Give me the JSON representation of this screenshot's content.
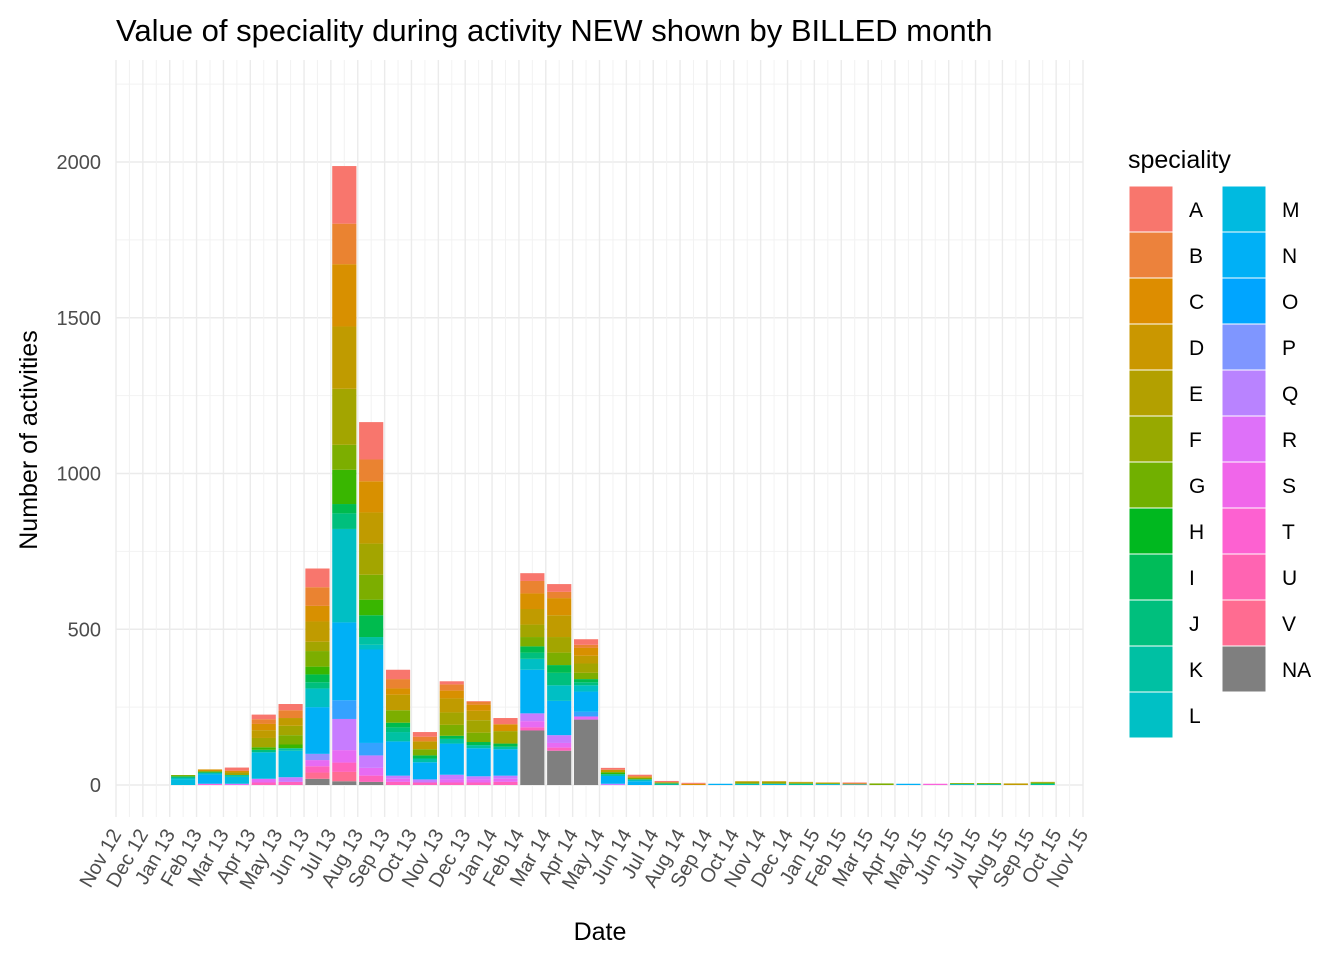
{
  "chart_data": {
    "type": "bar",
    "stacked": true,
    "title": "Value of  speciality during activity NEW shown by BILLED month",
    "xlabel": "Date",
    "ylabel": "Number of activities",
    "ylim": [
      -100,
      2240
    ],
    "y_ticks": [
      0,
      500,
      1000,
      1500,
      2000
    ],
    "x_tick_labels": [
      "Nov 12",
      "Dec 12",
      "Jan 13",
      "Feb 13",
      "Mar 13",
      "Apr 13",
      "May 13",
      "Jun 13",
      "Jul 13",
      "Aug 13",
      "Sep 13",
      "Oct 13",
      "Nov 13",
      "Dec 13",
      "Jan 14",
      "Feb 14",
      "Mar 14",
      "Apr 14",
      "May 14",
      "Jun 14",
      "Jul 14",
      "Aug 14",
      "Sep 14",
      "Oct 14",
      "Nov 14",
      "Dec 14",
      "Jan 15",
      "Feb 15",
      "Mar 15",
      "Apr 15",
      "May 15",
      "Jun 15",
      "Jul 15",
      "Aug 15",
      "Sep 15",
      "Oct 15",
      "Nov 15"
    ],
    "grid": true,
    "legend_position": "right",
    "legend_title": "speciality",
    "categories_keys": [
      "A",
      "B",
      "C",
      "D",
      "E",
      "F",
      "G",
      "H",
      "I",
      "J",
      "K",
      "L",
      "M",
      "N",
      "O",
      "P",
      "Q",
      "R",
      "S",
      "T",
      "U",
      "V",
      "NA"
    ],
    "colors": {
      "A": "#F8766D",
      "B": "#EA8331",
      "C": "#D89000",
      "D": "#C09B00",
      "E": "#A3A500",
      "F": "#7CAE00",
      "G": "#39B600",
      "H": "#00BB4E",
      "I": "#00BF7D",
      "J": "#00C1A3",
      "K": "#00BFC4",
      "L": "#00BAE0",
      "M": "#00B0F6",
      "N": "#35A2FF",
      "O": "#9590FF",
      "P": "#C77CFF",
      "Q": "#E76BF3",
      "R": "#FA62DB",
      "S": "#FF62BC",
      "T": "#FF6C91",
      "U": "#FF6C91",
      "V": "#FF6C91",
      "NA": "#7F7F7F"
    },
    "legend_colors": {
      "A": "#F8766D",
      "B": "#EC823C",
      "C": "#DD8D00",
      "D": "#CA9700",
      "E": "#B3A000",
      "F": "#97A900",
      "G": "#71B000",
      "H": "#00B81F",
      "I": "#00BC59",
      "J": "#00BF7D",
      "K": "#00C0A3",
      "L": "#00C0C5",
      "M": "#00BAE0",
      "N": "#00B0F6",
      "O": "#00A5FF",
      "P": "#7F96FF",
      "Q": "#B983FF",
      "R": "#DE71F9",
      "S": "#F066EA",
      "T": "#FD61D1",
      "U": "#FF64B2",
      "V": "#FF6C91",
      "NA": "#7F7F7F"
    },
    "bars": [
      {
        "date": "Jan 13",
        "segments": [
          [
            "L",
            18
          ],
          [
            "K",
            6
          ],
          [
            "H",
            4
          ],
          [
            "F",
            4
          ]
        ]
      },
      {
        "date": "Feb 13",
        "segments": [
          [
            "R",
            4
          ],
          [
            "M",
            30
          ],
          [
            "K",
            6
          ],
          [
            "G",
            4
          ],
          [
            "C",
            6
          ]
        ]
      },
      {
        "date": "Mar 13",
        "segments": [
          [
            "Q",
            4
          ],
          [
            "L",
            22
          ],
          [
            "J",
            6
          ],
          [
            "E",
            8
          ],
          [
            "C",
            6
          ],
          [
            "A",
            10
          ]
        ]
      },
      {
        "date": "Apr 13",
        "segments": [
          [
            "S",
            8
          ],
          [
            "Q",
            12
          ],
          [
            "L",
            85
          ],
          [
            "I",
            8
          ],
          [
            "G",
            8
          ],
          [
            "E",
            30
          ],
          [
            "D",
            25
          ],
          [
            "C",
            20
          ],
          [
            "B",
            15
          ],
          [
            "A",
            15
          ]
        ]
      },
      {
        "date": "May 13",
        "segments": [
          [
            "S",
            10
          ],
          [
            "P",
            15
          ],
          [
            "L",
            85
          ],
          [
            "J",
            8
          ],
          [
            "G",
            12
          ],
          [
            "F",
            30
          ],
          [
            "E",
            30
          ],
          [
            "D",
            25
          ],
          [
            "B",
            25
          ],
          [
            "A",
            20
          ]
        ]
      },
      {
        "date": "Jun 13",
        "segments": [
          [
            "NA",
            20
          ],
          [
            "T",
            20
          ],
          [
            "S",
            20
          ],
          [
            "Q",
            20
          ],
          [
            "O",
            20
          ],
          [
            "M",
            150
          ],
          [
            "K",
            60
          ],
          [
            "I",
            20
          ],
          [
            "H",
            25
          ],
          [
            "G",
            25
          ],
          [
            "F",
            50
          ],
          [
            "E",
            30
          ],
          [
            "D",
            65
          ],
          [
            "C",
            50
          ],
          [
            "B",
            60
          ],
          [
            "A",
            60
          ]
        ]
      },
      {
        "date": "Jul 13",
        "segments": [
          [
            "NA",
            12
          ],
          [
            "T",
            30
          ],
          [
            "S",
            30
          ],
          [
            "Q",
            40
          ],
          [
            "P",
            100
          ],
          [
            "N",
            60
          ],
          [
            "M",
            250
          ],
          [
            "K",
            300
          ],
          [
            "I",
            50
          ],
          [
            "H",
            30
          ],
          [
            "G",
            110
          ],
          [
            "F",
            80
          ],
          [
            "E",
            180
          ],
          [
            "D",
            200
          ],
          [
            "C",
            200
          ],
          [
            "B",
            130
          ],
          [
            "A",
            185
          ]
        ]
      },
      {
        "date": "Aug 13",
        "segments": [
          [
            "NA",
            10
          ],
          [
            "S",
            20
          ],
          [
            "Q",
            25
          ],
          [
            "P",
            40
          ],
          [
            "N",
            40
          ],
          [
            "M",
            300
          ],
          [
            "K",
            15
          ],
          [
            "J",
            25
          ],
          [
            "H",
            70
          ],
          [
            "G",
            50
          ],
          [
            "F",
            80
          ],
          [
            "E",
            100
          ],
          [
            "D",
            100
          ],
          [
            "C",
            100
          ],
          [
            "B",
            70
          ],
          [
            "A",
            120
          ],
          [
            "V",
            -5
          ]
        ]
      },
      {
        "date": "Sep 13",
        "segments": [
          [
            "S",
            10
          ],
          [
            "Q",
            10
          ],
          [
            "P",
            10
          ],
          [
            "M",
            110
          ],
          [
            "J",
            30
          ],
          [
            "I",
            15
          ],
          [
            "H",
            15
          ],
          [
            "F",
            40
          ],
          [
            "D",
            50
          ],
          [
            "C",
            20
          ],
          [
            "B",
            30
          ],
          [
            "A",
            30
          ]
        ]
      },
      {
        "date": "Oct 13",
        "segments": [
          [
            "S",
            8
          ],
          [
            "P",
            10
          ],
          [
            "M",
            55
          ],
          [
            "J",
            12
          ],
          [
            "H",
            10
          ],
          [
            "F",
            20
          ],
          [
            "D",
            25
          ],
          [
            "B",
            15
          ],
          [
            "A",
            15
          ]
        ]
      },
      {
        "date": "Nov 13",
        "segments": [
          [
            "S",
            8
          ],
          [
            "Q",
            10
          ],
          [
            "P",
            15
          ],
          [
            "M",
            100
          ],
          [
            "J",
            15
          ],
          [
            "H",
            10
          ],
          [
            "F",
            35
          ],
          [
            "E",
            40
          ],
          [
            "D",
            45
          ],
          [
            "C",
            25
          ],
          [
            "B",
            20
          ],
          [
            "A",
            10
          ]
        ]
      },
      {
        "date": "Dec 13",
        "segments": [
          [
            "S",
            8
          ],
          [
            "Q",
            10
          ],
          [
            "P",
            10
          ],
          [
            "M",
            90
          ],
          [
            "J",
            10
          ],
          [
            "H",
            10
          ],
          [
            "F",
            30
          ],
          [
            "E",
            40
          ],
          [
            "D",
            30
          ],
          [
            "C",
            20
          ],
          [
            "B",
            10
          ],
          [
            "A",
            1
          ]
        ]
      },
      {
        "date": "Jan 14",
        "segments": [
          [
            "S",
            10
          ],
          [
            "Q",
            10
          ],
          [
            "P",
            10
          ],
          [
            "M",
            85
          ],
          [
            "J",
            8
          ],
          [
            "H",
            10
          ],
          [
            "E",
            40
          ],
          [
            "C",
            22
          ],
          [
            "A",
            20
          ]
        ]
      },
      {
        "date": "Feb 14",
        "segments": [
          [
            "NA",
            175
          ],
          [
            "S",
            10
          ],
          [
            "Q",
            20
          ],
          [
            "P",
            25
          ],
          [
            "M",
            140
          ],
          [
            "K",
            35
          ],
          [
            "I",
            20
          ],
          [
            "H",
            20
          ],
          [
            "F",
            30
          ],
          [
            "E",
            40
          ],
          [
            "D",
            50
          ],
          [
            "C",
            50
          ],
          [
            "B",
            40
          ],
          [
            "A",
            25
          ]
        ]
      },
      {
        "date": "Mar 14",
        "segments": [
          [
            "NA",
            110
          ],
          [
            "S",
            10
          ],
          [
            "Q",
            15
          ],
          [
            "P",
            25
          ],
          [
            "M",
            110
          ],
          [
            "K",
            50
          ],
          [
            "I",
            40
          ],
          [
            "H",
            25
          ],
          [
            "F",
            40
          ],
          [
            "E",
            50
          ],
          [
            "D",
            70
          ],
          [
            "C",
            55
          ],
          [
            "B",
            20
          ],
          [
            "A",
            25
          ]
        ]
      },
      {
        "date": "Apr 14",
        "segments": [
          [
            "NA",
            210
          ],
          [
            "Q",
            10
          ],
          [
            "N",
            15
          ],
          [
            "M",
            65
          ],
          [
            "K",
            20
          ],
          [
            "I",
            10
          ],
          [
            "H",
            10
          ],
          [
            "F",
            20
          ],
          [
            "E",
            30
          ],
          [
            "D",
            25
          ],
          [
            "C",
            25
          ],
          [
            "B",
            10
          ],
          [
            "A",
            18
          ]
        ]
      },
      {
        "date": "May 14",
        "segments": [
          [
            "P",
            4
          ],
          [
            "M",
            25
          ],
          [
            "J",
            6
          ],
          [
            "G",
            6
          ],
          [
            "D",
            8
          ],
          [
            "A",
            6
          ]
        ]
      },
      {
        "date": "Jun 14",
        "segments": [
          [
            "M",
            12
          ],
          [
            "K",
            6
          ],
          [
            "F",
            5
          ],
          [
            "C",
            5
          ],
          [
            "A",
            5
          ]
        ]
      },
      {
        "date": "Jul 14",
        "segments": [
          [
            "J",
            5
          ],
          [
            "E",
            4
          ],
          [
            "A",
            4
          ]
        ]
      },
      {
        "date": "Aug 14",
        "segments": [
          [
            "C",
            4
          ],
          [
            "A",
            3
          ]
        ]
      },
      {
        "date": "Sep 14",
        "segments": [
          [
            "M",
            4
          ]
        ]
      },
      {
        "date": "Oct 14",
        "segments": [
          [
            "K",
            4
          ],
          [
            "F",
            4
          ],
          [
            "D",
            4
          ]
        ]
      },
      {
        "date": "Nov 14",
        "segments": [
          [
            "L",
            4
          ],
          [
            "F",
            4
          ],
          [
            "D",
            4
          ]
        ]
      },
      {
        "date": "Dec 14",
        "segments": [
          [
            "J",
            4
          ],
          [
            "F",
            3
          ],
          [
            "D",
            3
          ]
        ]
      },
      {
        "date": "Jan 15",
        "segments": [
          [
            "L",
            3
          ],
          [
            "F",
            3
          ],
          [
            "C",
            2
          ]
        ]
      },
      {
        "date": "Feb 15",
        "segments": [
          [
            "M",
            2
          ],
          [
            "D",
            3
          ],
          [
            "A",
            3
          ]
        ]
      },
      {
        "date": "Mar 15",
        "segments": [
          [
            "F",
            5
          ]
        ]
      },
      {
        "date": "Apr 15",
        "segments": [
          [
            "M",
            4
          ]
        ]
      },
      {
        "date": "May 15",
        "segments": [
          [
            "R",
            4
          ]
        ]
      },
      {
        "date": "Jun 15",
        "segments": [
          [
            "K",
            3
          ],
          [
            "F",
            3
          ]
        ]
      },
      {
        "date": "Jul 15",
        "segments": [
          [
            "J",
            3
          ],
          [
            "F",
            3
          ]
        ]
      },
      {
        "date": "Aug 15",
        "segments": [
          [
            "D",
            5
          ]
        ]
      },
      {
        "date": "Sep 15",
        "segments": [
          [
            "J",
            4
          ],
          [
            "G",
            3
          ],
          [
            "E",
            3
          ]
        ]
      }
    ]
  }
}
